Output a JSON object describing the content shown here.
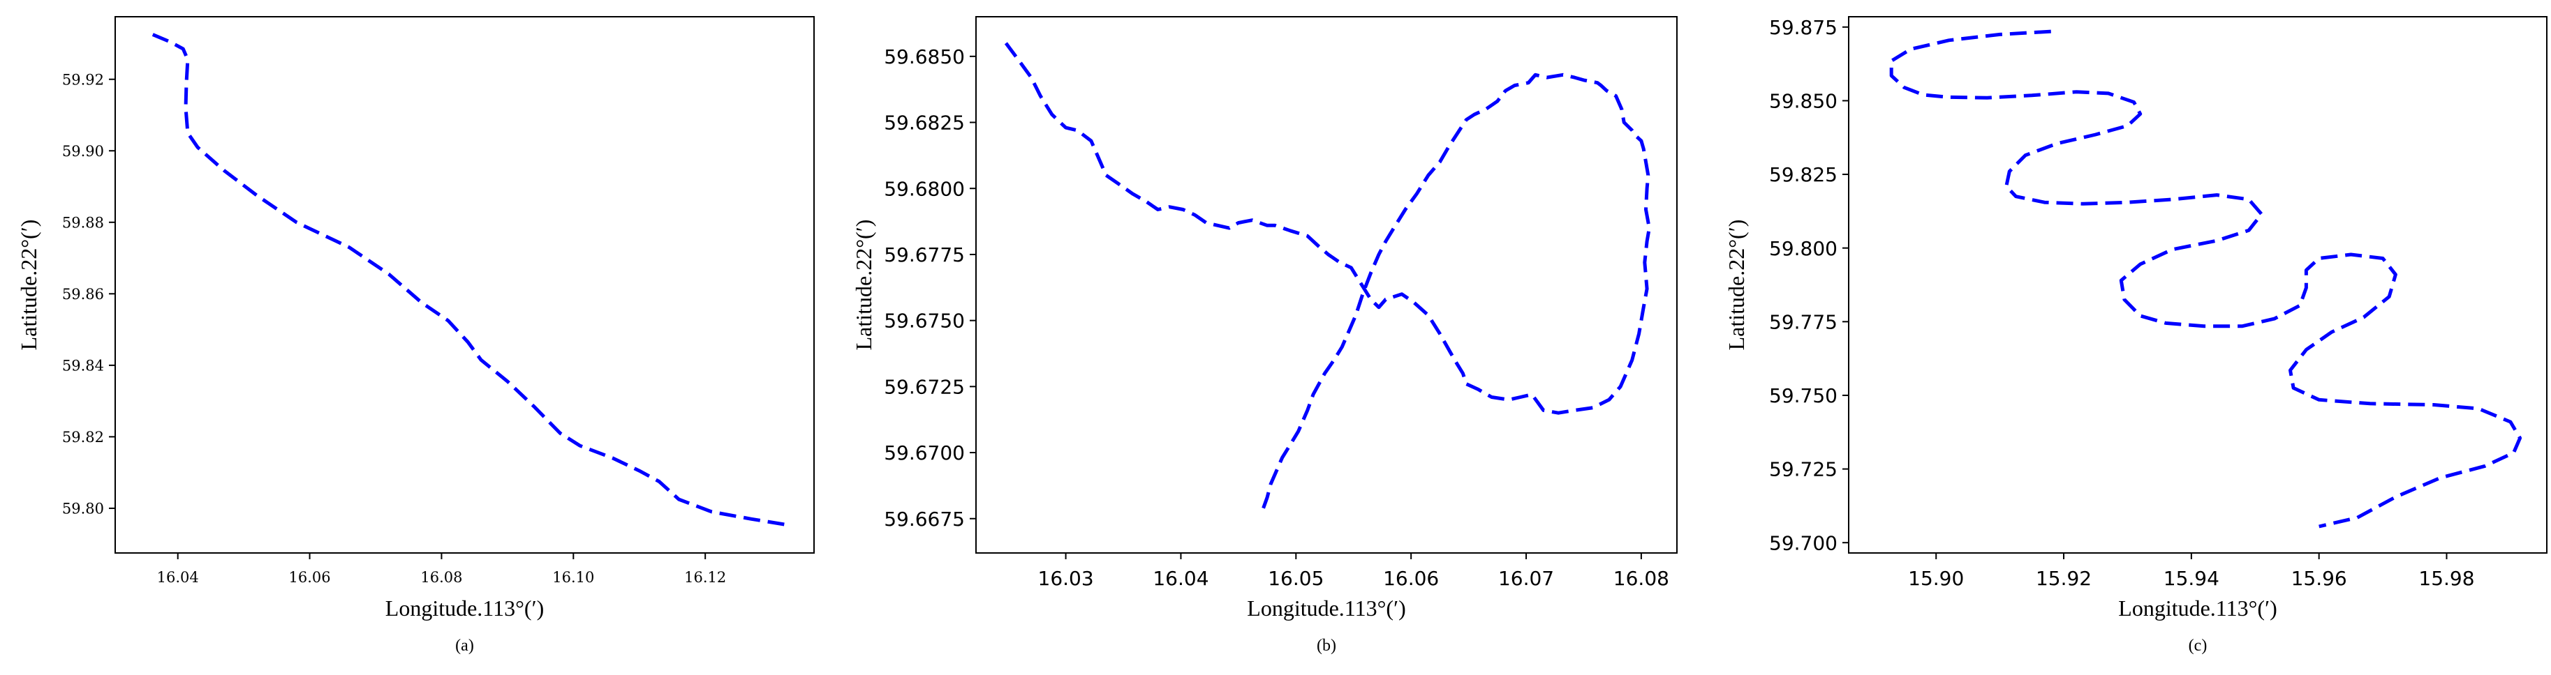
{
  "figure": {
    "line_color": "#0000ff",
    "panels": [
      "a",
      "b",
      "c"
    ]
  },
  "chart_data": [
    {
      "type": "line",
      "caption": "(a)",
      "xlabel": "Longitude.113°(′)",
      "ylabel": "Latitude.22°(′)",
      "xlim": [
        16.0305,
        16.1365
      ],
      "ylim": [
        59.7875,
        59.9375
      ],
      "xticks": [
        "16.04",
        "16.06",
        "16.08",
        "16.10",
        "16.12"
      ],
      "yticks": [
        "59.80",
        "59.82",
        "59.84",
        "59.86",
        "59.88",
        "59.90",
        "59.92"
      ],
      "tick_font": "serif",
      "line_style": "dashed",
      "grid": false,
      "series": [
        {
          "color": "#0000ff",
          "x": [
            16.0362,
            16.0388,
            16.0408,
            16.0415,
            16.0413,
            16.0412,
            16.0415,
            16.043,
            16.047,
            16.052,
            16.058,
            16.066,
            16.072,
            16.077,
            16.081,
            16.084,
            16.086,
            16.09,
            16.094,
            16.098,
            16.101,
            16.106,
            16.11,
            16.113,
            16.116,
            16.121,
            16.127,
            16.132
          ],
          "y": [
            59.9325,
            59.9305,
            59.9285,
            59.9255,
            59.919,
            59.912,
            59.905,
            59.901,
            59.8945,
            59.8875,
            59.88,
            59.873,
            59.8655,
            59.8575,
            59.8525,
            59.8465,
            59.8415,
            59.8355,
            59.8285,
            59.821,
            59.8175,
            59.814,
            59.8105,
            59.8075,
            59.8025,
            59.799,
            59.797,
            59.7955
          ]
        }
      ]
    },
    {
      "type": "line",
      "caption": "(b)",
      "xlabel": "Longitude.113°(′)",
      "ylabel": "Latitude.22°(′)",
      "xlim": [
        16.0222,
        16.0831
      ],
      "ylim": [
        59.6662,
        59.6865
      ],
      "xticks": [
        "16.03",
        "16.04",
        "16.05",
        "16.06",
        "16.07",
        "16.08"
      ],
      "yticks": [
        "59.6675",
        "59.6700",
        "59.6725",
        "59.6750",
        "59.6775",
        "59.6800",
        "59.6825",
        "59.6850"
      ],
      "tick_font": "sans",
      "line_style": "dashed",
      "grid": false,
      "series": [
        {
          "color": "#0000ff",
          "x": [
            16.0248,
            16.026,
            16.027,
            16.0278,
            16.0288,
            16.03,
            16.031,
            16.0322,
            16.0328,
            16.0335,
            16.0345,
            16.0358,
            16.037,
            16.038,
            16.039,
            16.0402,
            16.0412,
            16.0422,
            16.0432,
            16.0442,
            16.045,
            16.0462,
            16.0475,
            16.0482,
            16.0495,
            16.051,
            16.052,
            16.0528,
            16.0538,
            16.0548,
            16.0555,
            16.0565,
            16.0572,
            16.0578,
            16.0592,
            16.0602,
            16.0615,
            16.0625,
            16.0638,
            16.0645,
            16.0648,
            16.0658,
            16.067,
            16.0685,
            16.0695,
            16.0705,
            16.0715,
            16.0728,
            16.0742,
            16.0758,
            16.0772,
            16.0782,
            16.0792,
            16.0798,
            16.0802,
            16.0805,
            16.0803,
            16.0805,
            16.0807,
            16.0804,
            16.0805,
            16.0806,
            16.0804,
            16.0802,
            16.08,
            16.0795,
            16.0792,
            16.0785,
            16.0783,
            16.0778,
            16.077,
            16.0765,
            16.0762,
            16.075,
            16.0742,
            16.0732,
            16.0718,
            16.0708,
            16.0702,
            16.069,
            16.0682,
            16.0675,
            16.0665,
            16.0655,
            16.0648,
            16.0642,
            16.0633,
            16.0625,
            16.0615,
            16.0605,
            16.0595,
            16.0585,
            16.0578,
            16.0572,
            16.0565,
            16.0558,
            16.0552,
            16.0545,
            16.054,
            16.0533,
            16.0525,
            16.0515,
            16.051,
            16.0502,
            16.0495,
            16.0488,
            16.0482,
            16.0478,
            16.0475,
            16.047
          ],
          "y": [
            59.6855,
            59.6848,
            59.6842,
            59.6835,
            59.6828,
            59.6823,
            59.6822,
            59.6818,
            59.6812,
            59.6805,
            59.6802,
            59.6798,
            59.6795,
            59.6792,
            59.6793,
            59.6792,
            59.679,
            59.6787,
            59.6786,
            59.6785,
            59.6787,
            59.6788,
            59.6786,
            59.6786,
            59.6784,
            59.6782,
            59.6778,
            59.6775,
            59.6772,
            59.677,
            59.6765,
            59.6758,
            59.6755,
            59.6758,
            59.676,
            59.6757,
            59.6752,
            59.6745,
            59.6735,
            59.673,
            59.6726,
            59.6724,
            59.6721,
            59.672,
            59.6721,
            59.6722,
            59.6716,
            59.6715,
            59.6716,
            59.6717,
            59.672,
            59.6725,
            59.6735,
            59.6745,
            59.6755,
            59.6762,
            59.6772,
            59.678,
            59.6785,
            59.6792,
            59.68,
            59.6805,
            59.681,
            59.6815,
            59.6818,
            59.682,
            59.6822,
            59.6825,
            59.683,
            59.6835,
            59.6837,
            59.6839,
            59.684,
            59.6841,
            59.6842,
            59.6843,
            59.6842,
            59.6843,
            59.684,
            59.6839,
            59.6837,
            59.6833,
            59.683,
            59.6828,
            59.6826,
            59.6822,
            59.6816,
            59.681,
            59.6805,
            59.6798,
            59.6792,
            59.6785,
            59.678,
            59.6775,
            59.6768,
            59.676,
            59.6752,
            59.6745,
            59.674,
            59.6735,
            59.673,
            59.6722,
            59.6716,
            59.6708,
            59.6703,
            59.6698,
            59.6692,
            59.6688,
            59.6683,
            59.6677
          ]
        }
      ]
    },
    {
      "type": "line",
      "caption": "(c)",
      "xlabel": "Longitude.113°(′)",
      "ylabel": "Latitude.22°(′)",
      "xlim": [
        15.8863,
        15.9957
      ],
      "ylim": [
        59.6965,
        59.8785
      ],
      "xticks": [
        "15.90",
        "15.92",
        "15.94",
        "15.96",
        "15.98"
      ],
      "yticks": [
        "59.700",
        "59.725",
        "59.750",
        "59.775",
        "59.800",
        "59.825",
        "59.850",
        "59.875"
      ],
      "tick_font": "sans",
      "line_style": "dashed",
      "grid": false,
      "series": [
        {
          "color": "#0000ff",
          "x": [
            15.918,
            15.91,
            15.902,
            15.896,
            15.893,
            15.893,
            15.895,
            15.898,
            15.902,
            15.908,
            15.915,
            15.922,
            15.927,
            15.931,
            15.932,
            15.93,
            15.925,
            15.919,
            15.914,
            15.9115,
            15.911,
            15.9125,
            15.917,
            15.923,
            15.93,
            15.937,
            15.944,
            15.949,
            15.951,
            15.949,
            15.944,
            15.937,
            15.932,
            15.929,
            15.9295,
            15.932,
            15.936,
            15.942,
            15.948,
            15.953,
            15.957,
            15.958,
            15.958,
            15.96,
            15.965,
            15.97,
            15.972,
            15.971,
            15.967,
            15.962,
            15.958,
            15.9555,
            15.956,
            15.96,
            15.968,
            15.978,
            15.985,
            15.99,
            15.9915,
            15.9905,
            15.986,
            15.979,
            15.972,
            15.966,
            15.96
          ],
          "y": [
            59.8735,
            59.8725,
            59.8705,
            59.8675,
            59.8635,
            59.8585,
            59.8545,
            59.852,
            59.8512,
            59.851,
            59.8518,
            59.853,
            59.8525,
            59.8495,
            59.8455,
            59.8415,
            59.8385,
            59.8355,
            59.8315,
            59.826,
            59.821,
            59.8175,
            59.8155,
            59.815,
            59.8155,
            59.8165,
            59.818,
            59.8165,
            59.8115,
            59.806,
            59.8025,
            59.7995,
            59.7945,
            59.789,
            59.7825,
            59.777,
            59.7745,
            59.7735,
            59.7735,
            59.776,
            59.7805,
            59.7865,
            59.7925,
            59.7965,
            59.7978,
            59.7965,
            59.791,
            59.7835,
            59.7765,
            59.7715,
            59.7655,
            59.7585,
            59.7525,
            59.7485,
            59.7472,
            59.7468,
            59.7455,
            59.741,
            59.7355,
            59.7305,
            59.726,
            59.722,
            59.7155,
            59.7085,
            59.7055
          ]
        }
      ]
    }
  ]
}
